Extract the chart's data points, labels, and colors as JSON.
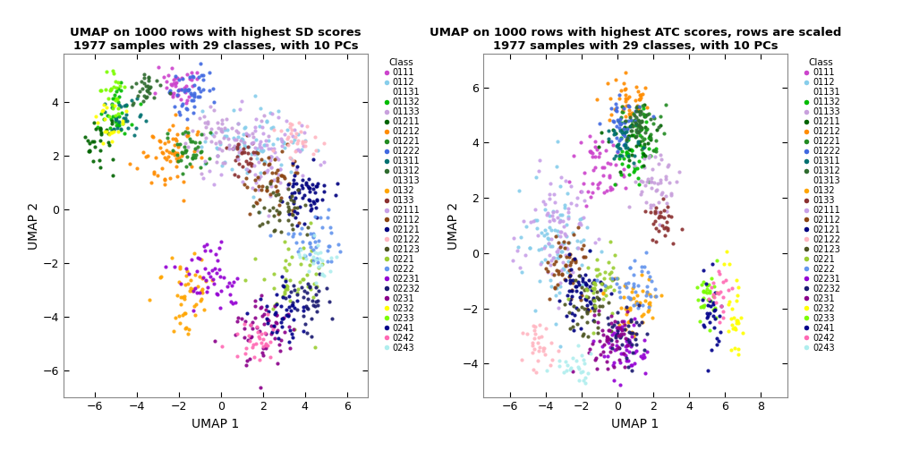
{
  "title1": "UMAP on 1000 rows with highest SD scores\n1977 samples with 29 classes, with 10 PCs",
  "title2": "UMAP on 1000 rows with highest ATC scores, rows are scaled\n1977 samples with 29 classes, with 10 PCs",
  "xlabel": "UMAP 1",
  "ylabel": "UMAP 2",
  "legend_title": "Class",
  "xlim1": [
    -7.5,
    7.0
  ],
  "ylim1": [
    -7.0,
    5.8
  ],
  "xlim2": [
    -7.5,
    9.5
  ],
  "ylim2": [
    -5.2,
    7.2
  ],
  "xticks1": [
    -6,
    -4,
    -2,
    0,
    2,
    4,
    6
  ],
  "yticks1": [
    -6,
    -4,
    -2,
    0,
    2,
    4
  ],
  "xticks2": [
    -6,
    -4,
    -2,
    0,
    2,
    4,
    6,
    8
  ],
  "yticks2": [
    -4,
    -2,
    0,
    2,
    4,
    6
  ],
  "classes": [
    "0111",
    "0112",
    "01131",
    "01132",
    "01133",
    "01211",
    "01212",
    "01221",
    "01222",
    "01311",
    "01312",
    "01313",
    "0132",
    "0133",
    "02111",
    "02112",
    "02121",
    "02122",
    "02123",
    "0221",
    "0222",
    "02231",
    "02232",
    "0231",
    "0232",
    "0233",
    "0241",
    "0242",
    "0243"
  ],
  "legend_colors": [
    "#CC44CC",
    "#87CEEB",
    "#FFFFFF",
    "#00BB00",
    "#C8A0DC",
    "#006400",
    "#FF8C00",
    "#228B22",
    "#4169E1",
    "#007070",
    "#2E6B2E",
    "#FFFFFF",
    "#FFA500",
    "#8B3030",
    "#C8A0E8",
    "#8B4513",
    "#000080",
    "#FFB6C1",
    "#4B5320",
    "#9ACD32",
    "#6495ED",
    "#9400D3",
    "#191970",
    "#8B008B",
    "#FFFF00",
    "#7CFC00",
    "#00008B",
    "#FF69B4",
    "#AFEEEE"
  ],
  "bg_color": "#FFFFFF",
  "plot_bg": "#FFFFFF",
  "border_color": "#AAAAAA"
}
